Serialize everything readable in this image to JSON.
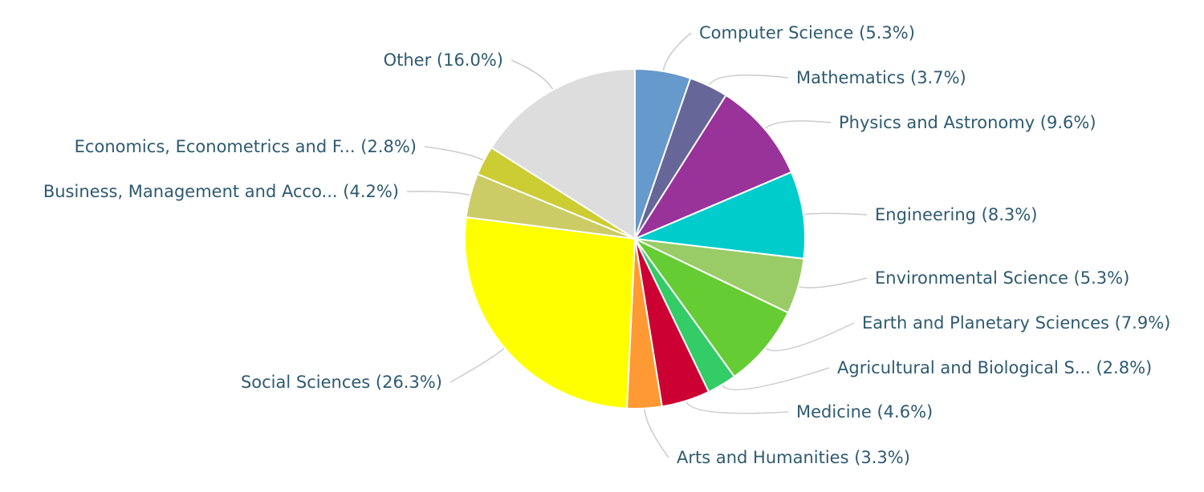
{
  "chart_data": {
    "type": "pie",
    "title": "",
    "start_angle": "top",
    "direction": "clockwise",
    "slices": [
      {
        "label": "Computer Science",
        "value": 5.3,
        "display": "Computer Science (5.3%)",
        "color": "#6699cc"
      },
      {
        "label": "Mathematics",
        "value": 3.7,
        "display": "Mathematics (3.7%)",
        "color": "#666699"
      },
      {
        "label": "Physics and Astronomy",
        "value": 9.6,
        "display": "Physics and Astronomy (9.6%)",
        "color": "#993399"
      },
      {
        "label": "Engineering",
        "value": 8.3,
        "display": "Engineering (8.3%)",
        "color": "#00cccc"
      },
      {
        "label": "Environmental Science",
        "value": 5.3,
        "display": "Environmental Science (5.3%)",
        "color": "#99cc66"
      },
      {
        "label": "Earth and Planetary Sciences",
        "value": 7.9,
        "display": "Earth and Planetary Sciences (7.9%)",
        "color": "#66cc33"
      },
      {
        "label": "Agricultural and Biological S...",
        "value": 2.8,
        "display": "Agricultural and Biological S... (2.8%)",
        "color": "#33cc66"
      },
      {
        "label": "Medicine",
        "value": 4.6,
        "display": "Medicine (4.6%)",
        "color": "#cc0033"
      },
      {
        "label": "Arts and Humanities",
        "value": 3.3,
        "display": "Arts and Humanities (3.3%)",
        "color": "#ff9933"
      },
      {
        "label": "Social Sciences",
        "value": 26.3,
        "display": "Social Sciences (26.3%)",
        "color": "#ffff00"
      },
      {
        "label": "Business, Management and Acco...",
        "value": 4.2,
        "display": "Business, Management and Acco... (4.2%)",
        "color": "#cccc66"
      },
      {
        "label": "Economics, Econometrics and F...",
        "value": 2.8,
        "display": "Economics, Econometrics and F... (2.8%)",
        "color": "#cccc33"
      },
      {
        "label": "Other",
        "value": 16.0,
        "display": "Other (16.0%)",
        "color": "#dddddd"
      }
    ]
  }
}
